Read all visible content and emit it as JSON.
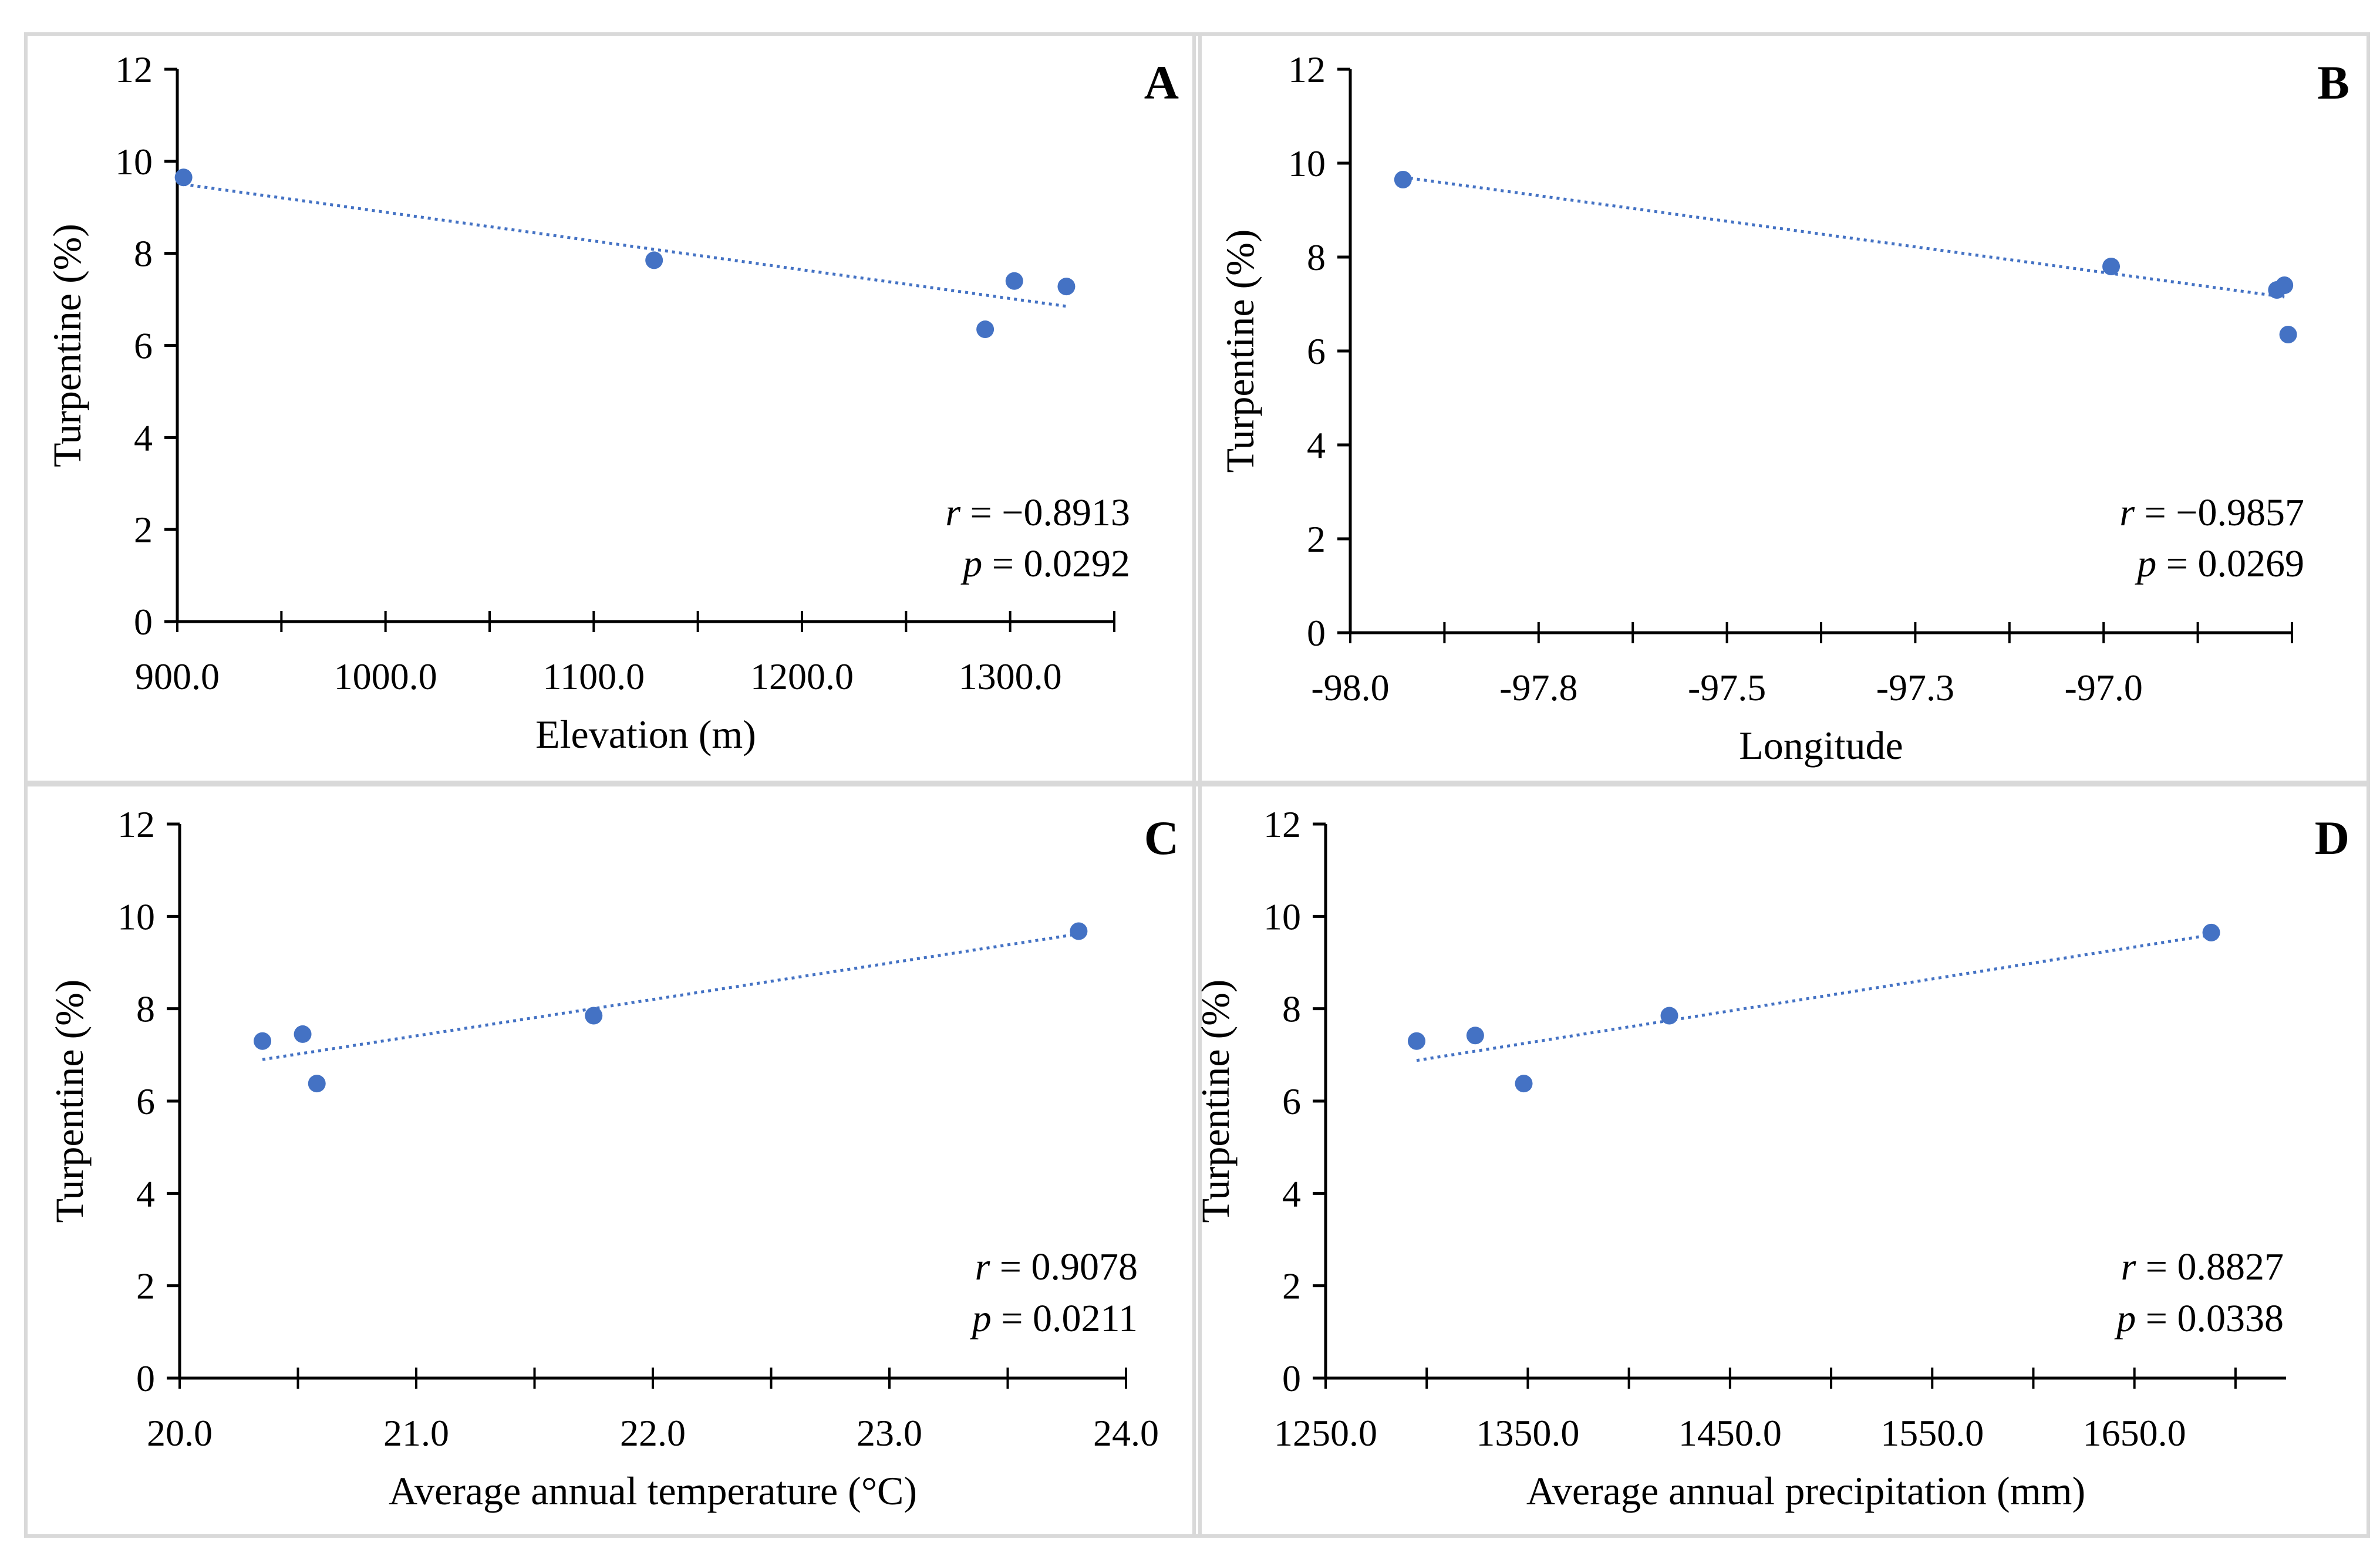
{
  "chart_data": [
    {
      "type": "scatter",
      "panel": "A",
      "xlabel": "Elevation (m)",
      "ylabel": "Turpentine (%)",
      "xlim": [
        900,
        1350
      ],
      "ylim": [
        0,
        12
      ],
      "x_ticks": [
        900,
        1000,
        1100,
        1200,
        1300
      ],
      "x_tick_labels": [
        "900.0",
        "1000.0",
        "1100.0",
        "1200.0",
        "1300.0"
      ],
      "y_ticks": [
        0,
        2,
        4,
        6,
        8,
        10,
        12
      ],
      "y_tick_labels": [
        "0",
        "2",
        "4",
        "6",
        "8",
        "10",
        "12"
      ],
      "x_minor_step": 50,
      "series": [
        {
          "name": "Turpentine",
          "x": [
            903,
            1129,
            1288,
            1302,
            1327
          ],
          "y": [
            9.65,
            7.85,
            6.35,
            7.4,
            7.28
          ]
        }
      ],
      "trendline": {
        "x": [
          903,
          1327
        ],
        "y": [
          9.5,
          6.85
        ]
      },
      "stats": {
        "r_label": "r",
        "r_value": "= −0.8913",
        "p_label": "p",
        "p_value": "= 0.0292"
      }
    },
    {
      "type": "scatter",
      "panel": "B",
      "xlabel": "Longitude",
      "ylabel": "Turpentine (%)",
      "xlim": [
        -98.0,
        -96.75
      ],
      "ylim": [
        0,
        12
      ],
      "x_ticks": [
        -98.0,
        -97.75,
        -97.5,
        -97.25,
        -97.0
      ],
      "x_tick_labels": [
        "-98.0",
        "-97.8",
        "-97.5",
        "-97.3",
        "-97.0"
      ],
      "y_ticks": [
        0,
        2,
        4,
        6,
        8,
        10,
        12
      ],
      "y_tick_labels": [
        "0",
        "2",
        "4",
        "6",
        "8",
        "10",
        "12"
      ],
      "x_minor_step": 0.125,
      "series": [
        {
          "name": "Turpentine",
          "x": [
            -97.93,
            -96.99,
            -96.77,
            -96.76,
            -96.755
          ],
          "y": [
            9.65,
            7.8,
            7.3,
            7.4,
            6.35
          ]
        }
      ],
      "trendline": {
        "x": [
          -97.93,
          -96.76
        ],
        "y": [
          9.7,
          7.15
        ]
      },
      "stats": {
        "r_label": "r",
        "r_value": "= −0.9857",
        "p_label": "p",
        "p_value": "= 0.0269"
      }
    },
    {
      "type": "scatter",
      "panel": "C",
      "xlabel": "Average annual temperature (°C)",
      "ylabel": "Turpentine (%)",
      "xlim": [
        20.0,
        24.0
      ],
      "ylim": [
        0,
        12
      ],
      "x_ticks": [
        20,
        21,
        22,
        23,
        24
      ],
      "x_tick_labels": [
        "20.0",
        "21.0",
        "22.0",
        "23.0",
        "24.0"
      ],
      "y_ticks": [
        0,
        2,
        4,
        6,
        8,
        10,
        12
      ],
      "y_tick_labels": [
        "0",
        "2",
        "4",
        "6",
        "8",
        "10",
        "12"
      ],
      "x_minor_step": 0.5,
      "series": [
        {
          "name": "Turpentine",
          "x": [
            20.35,
            20.52,
            20.58,
            21.75,
            23.8
          ],
          "y": [
            7.3,
            7.45,
            6.38,
            7.85,
            9.68
          ]
        }
      ],
      "trendline": {
        "x": [
          20.35,
          23.8
        ],
        "y": [
          6.9,
          9.62
        ]
      },
      "stats": {
        "r_label": "r",
        "r_value": "=  0.9078",
        "p_label": "p",
        "p_value": "= 0.0211"
      }
    },
    {
      "type": "scatter",
      "panel": "D",
      "xlabel": "Average annual precipitation (mm)",
      "ylabel": "Turpentine (%)",
      "xlim": [
        1250,
        1725
      ],
      "ylim": [
        0,
        12
      ],
      "x_ticks": [
        1250,
        1350,
        1450,
        1550,
        1650
      ],
      "x_tick_labels": [
        "1250.0",
        "1350.0",
        "1450.0",
        "1550.0",
        "1650.0"
      ],
      "y_ticks": [
        0,
        2,
        4,
        6,
        8,
        10,
        12
      ],
      "y_tick_labels": [
        "0",
        "2",
        "4",
        "6",
        "8",
        "10",
        "12"
      ],
      "x_minor_step": 50,
      "series": [
        {
          "name": "Turpentine",
          "x": [
            1295,
            1324,
            1348,
            1420,
            1688
          ],
          "y": [
            7.3,
            7.42,
            6.38,
            7.85,
            9.65
          ]
        }
      ],
      "trendline": {
        "x": [
          1295,
          1688
        ],
        "y": [
          6.88,
          9.6
        ]
      },
      "stats": {
        "r_label": "r",
        "r_value": "= 0.8827",
        "p_label": "p",
        "p_value": "= 0.0338"
      }
    }
  ],
  "colors": {
    "point": "#4472C4",
    "trendline": "#4472C4",
    "axis": "#000000",
    "panel_border": "#D9D9D9"
  }
}
